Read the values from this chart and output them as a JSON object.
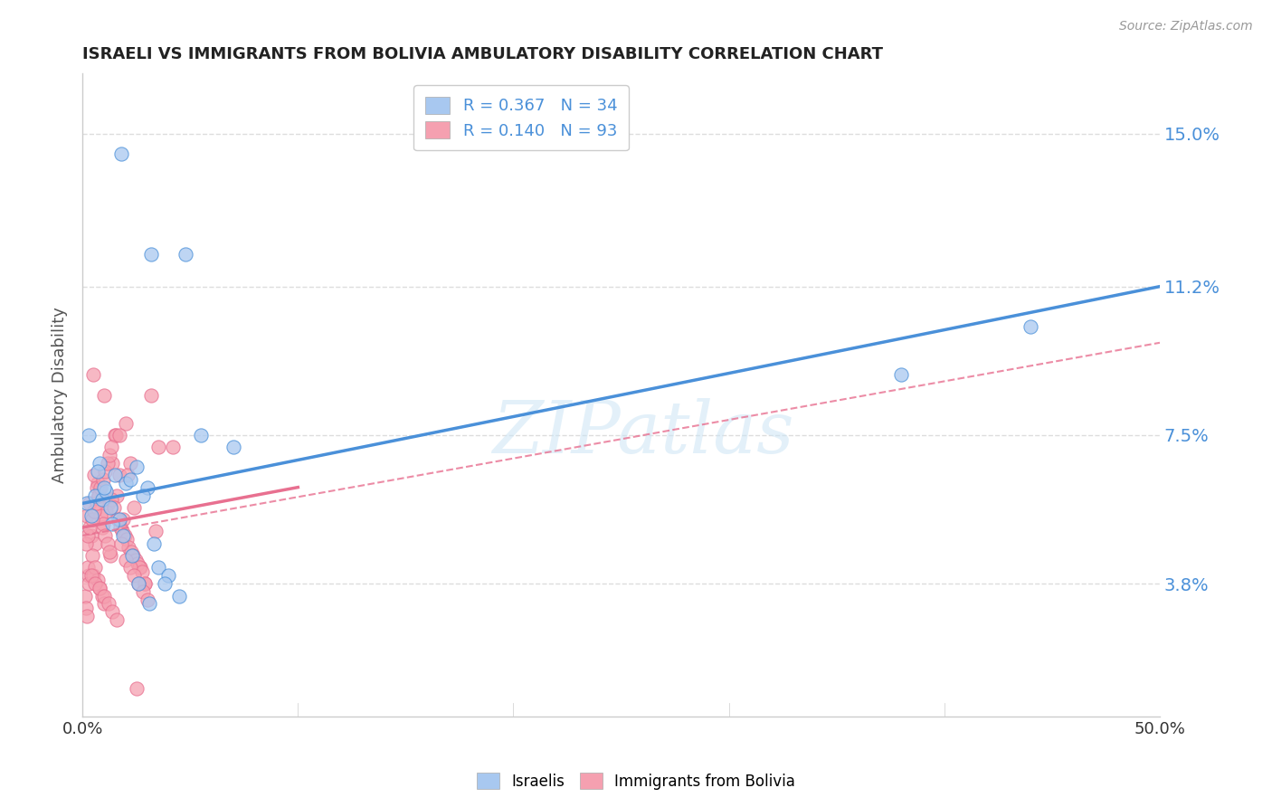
{
  "title": "ISRAELI VS IMMIGRANTS FROM BOLIVIA AMBULATORY DISABILITY CORRELATION CHART",
  "source": "Source: ZipAtlas.com",
  "ylabel": "Ambulatory Disability",
  "ytick_labels": [
    "3.8%",
    "7.5%",
    "11.2%",
    "15.0%"
  ],
  "ytick_values": [
    3.8,
    7.5,
    11.2,
    15.0
  ],
  "xlim": [
    0.0,
    50.0
  ],
  "ylim": [
    0.5,
    16.5
  ],
  "watermark": "ZIPatlas",
  "legend_r1": "R = 0.367",
  "legend_n1": "N = 34",
  "legend_r2": "R = 0.140",
  "legend_n2": "N = 93",
  "israelis_color": "#a8c8f0",
  "bolivia_color": "#f5a0b0",
  "trendline_israeli_color": "#4a90d9",
  "trendline_bolivia_color": "#e87090",
  "background_color": "#ffffff",
  "grid_color": "#dddddd",
  "israeli_trendline_x0": 0.0,
  "israeli_trendline_y0": 5.8,
  "israeli_trendline_x1": 50.0,
  "israeli_trendline_y1": 11.2,
  "bolivia_dashed_x0": 0.0,
  "bolivia_dashed_y0": 5.0,
  "bolivia_dashed_x1": 50.0,
  "bolivia_dashed_y1": 9.8,
  "bolivia_solid_x0": 0.0,
  "bolivia_solid_y0": 5.2,
  "bolivia_solid_x1": 10.0,
  "bolivia_solid_y1": 6.2,
  "israelis_x": [
    1.8,
    3.2,
    4.8,
    0.3,
    0.8,
    1.5,
    2.0,
    2.5,
    3.0,
    3.5,
    4.0,
    0.2,
    0.4,
    0.6,
    0.9,
    1.1,
    1.3,
    1.7,
    2.2,
    2.8,
    3.3,
    3.8,
    4.5,
    0.7,
    1.0,
    1.4,
    1.9,
    2.3,
    38.0,
    44.0,
    2.6,
    3.1,
    5.5,
    7.0
  ],
  "israelis_y": [
    14.5,
    12.0,
    12.0,
    7.5,
    6.8,
    6.5,
    6.3,
    6.7,
    6.2,
    4.2,
    4.0,
    5.8,
    5.5,
    6.0,
    5.9,
    6.1,
    5.7,
    5.4,
    6.4,
    6.0,
    4.8,
    3.8,
    3.5,
    6.6,
    6.2,
    5.3,
    5.0,
    4.5,
    9.0,
    10.2,
    3.8,
    3.3,
    7.5,
    7.2
  ],
  "bolivia_x": [
    0.5,
    1.0,
    1.5,
    2.0,
    0.3,
    0.8,
    1.2,
    1.7,
    2.2,
    2.7,
    3.2,
    0.2,
    0.4,
    0.6,
    0.9,
    1.1,
    1.3,
    1.6,
    1.9,
    2.4,
    2.9,
    3.4,
    0.7,
    1.4,
    0.25,
    0.35,
    0.45,
    0.55,
    0.65,
    0.75,
    0.85,
    0.95,
    1.05,
    1.15,
    1.25,
    1.35,
    1.45,
    1.55,
    1.65,
    1.75,
    1.85,
    1.95,
    2.05,
    2.15,
    2.25,
    2.35,
    2.45,
    2.55,
    2.65,
    2.75,
    0.1,
    0.15,
    0.2,
    0.3,
    0.5,
    0.6,
    0.7,
    0.8,
    0.9,
    1.0,
    1.8,
    2.9,
    3.5,
    0.4,
    0.6,
    0.8,
    1.0,
    1.2,
    1.4,
    1.6,
    2.0,
    2.2,
    2.4,
    2.6,
    2.8,
    3.0,
    0.15,
    0.25,
    0.35,
    0.45,
    0.55,
    0.65,
    0.75,
    0.85,
    0.95,
    1.05,
    1.15,
    1.25,
    1.35,
    1.7,
    2.1,
    2.5,
    4.2
  ],
  "bolivia_y": [
    9.0,
    8.5,
    7.5,
    7.8,
    4.0,
    6.2,
    5.8,
    6.5,
    6.8,
    4.2,
    8.5,
    5.5,
    5.0,
    4.8,
    5.2,
    5.6,
    4.5,
    6.0,
    5.4,
    5.7,
    3.8,
    5.1,
    6.3,
    6.8,
    4.2,
    5.8,
    4.5,
    6.5,
    6.2,
    6.0,
    5.5,
    5.3,
    5.0,
    4.8,
    4.6,
    5.9,
    5.7,
    7.5,
    5.4,
    5.2,
    5.1,
    5.0,
    4.9,
    4.7,
    4.6,
    4.5,
    4.4,
    4.3,
    4.2,
    4.1,
    3.5,
    3.2,
    3.0,
    3.8,
    4.0,
    4.2,
    3.9,
    3.7,
    3.5,
    3.3,
    4.8,
    3.8,
    7.2,
    4.0,
    3.8,
    3.7,
    3.5,
    3.3,
    3.1,
    2.9,
    4.4,
    4.2,
    4.0,
    3.8,
    3.6,
    3.4,
    4.8,
    5.0,
    5.2,
    5.4,
    5.6,
    5.8,
    6.0,
    6.2,
    6.4,
    6.6,
    6.8,
    7.0,
    7.2,
    7.5,
    6.5,
    1.2,
    7.2
  ]
}
